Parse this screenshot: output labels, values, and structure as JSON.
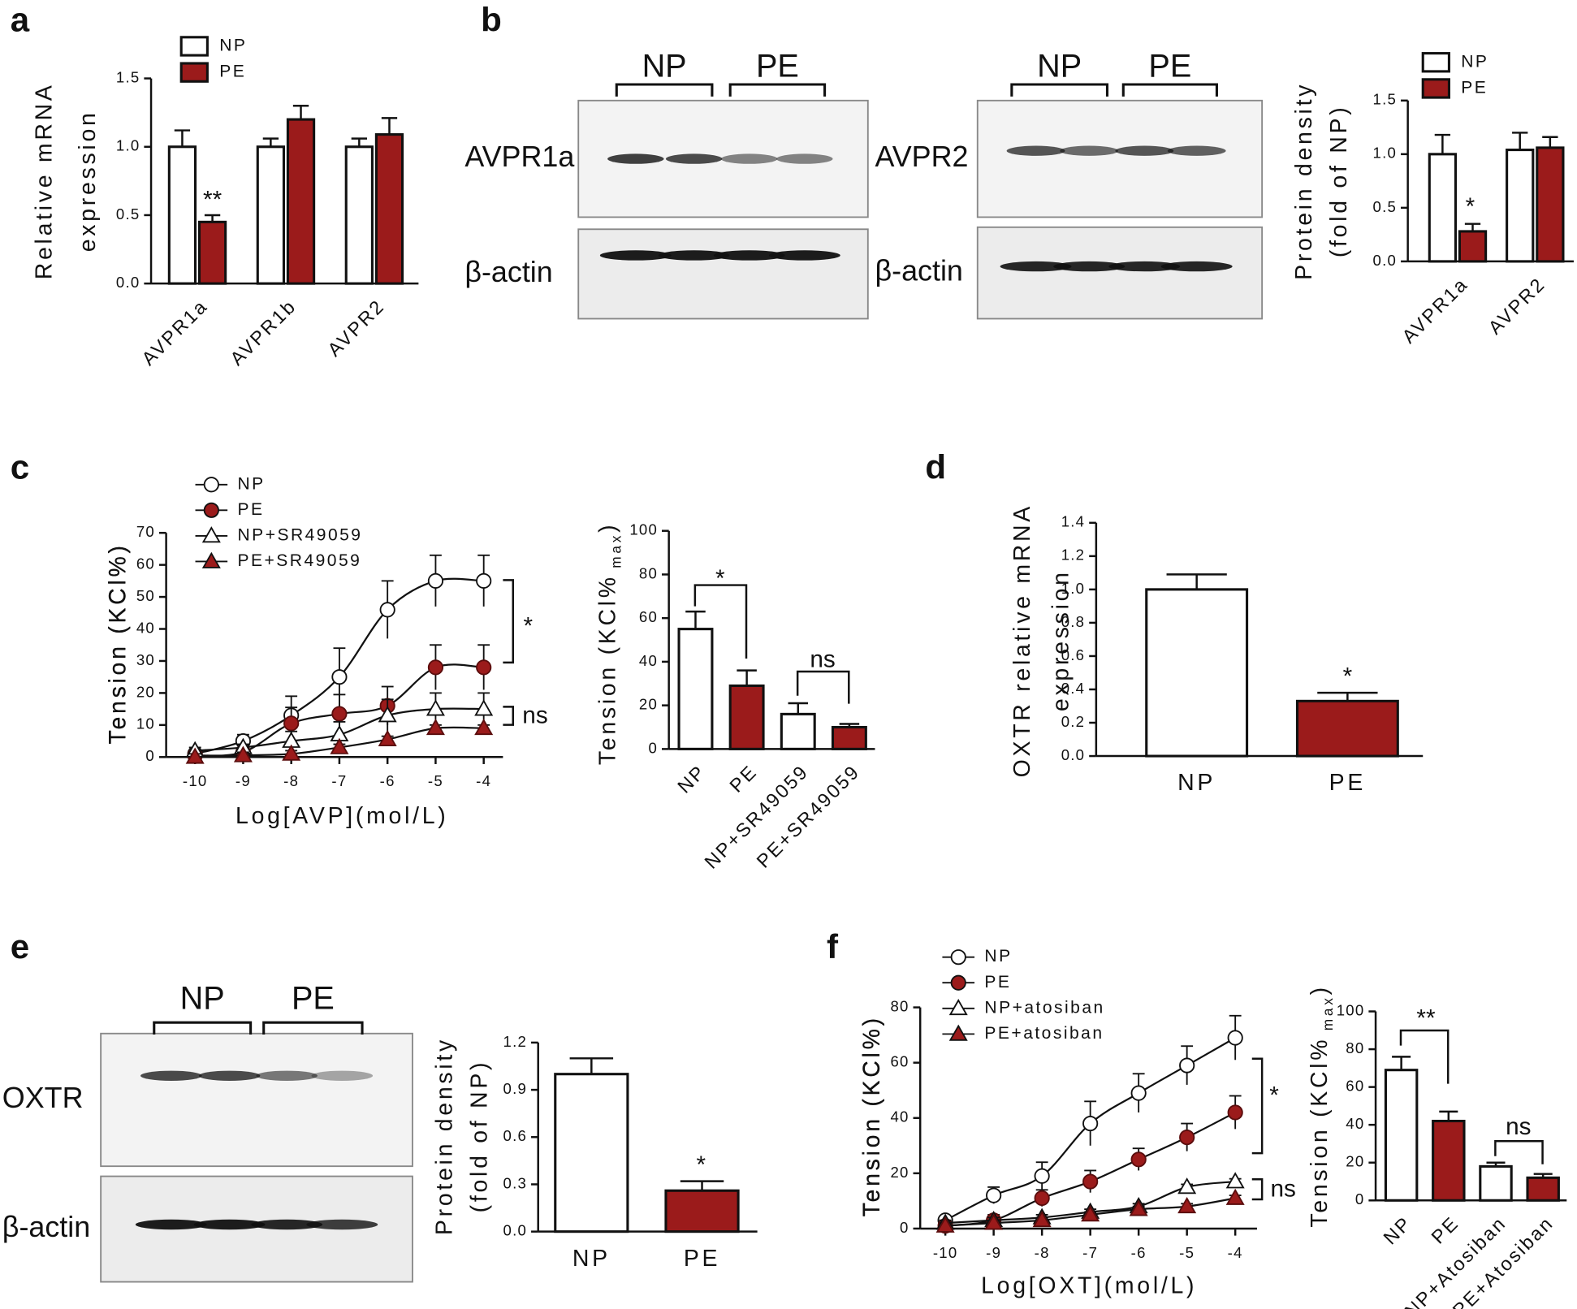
{
  "chart_data": [
    {
      "type": "bar",
      "panel": "a",
      "ylabel": [
        "Relative mRNA",
        "expression"
      ],
      "categories": [
        "AVPR1a",
        "AVPR1b",
        "AVPR2"
      ],
      "series": [
        {
          "name": "NP",
          "color": "#ffffff",
          "values": [
            1.0,
            1.0,
            1.0
          ],
          "errors": [
            0.12,
            0.06,
            0.06
          ]
        },
        {
          "name": "PE",
          "color": "#9b1b1b",
          "values": [
            0.45,
            1.2,
            1.09
          ],
          "errors": [
            0.05,
            0.1,
            0.12
          ]
        }
      ],
      "ylim": [
        0,
        1.5
      ],
      "yticks": [
        {
          "value": 0,
          "label": "0.0"
        },
        0.5,
        {
          "value": 1,
          "label": "1.0"
        },
        1.5
      ],
      "annotations": [
        "**"
      ]
    },
    {
      "type": "blot",
      "panel": "b",
      "groups": [
        "NP",
        "PE"
      ],
      "rows": [
        "AVPR1a",
        "β-actin"
      ]
    },
    {
      "type": "blot",
      "groups": [
        "NP",
        "PE"
      ],
      "rows": [
        "AVPR2",
        "β-actin"
      ]
    },
    {
      "type": "bar",
      "ylabel": [
        "Protein density",
        "(fold of NP)"
      ],
      "categories": [
        "AVPR1a",
        "AVPR2"
      ],
      "series": [
        {
          "name": "NP",
          "color": "#ffffff",
          "values": [
            1.0,
            1.04
          ],
          "errors": [
            0.18,
            0.16
          ]
        },
        {
          "name": "PE",
          "color": "#9b1b1b",
          "values": [
            0.28,
            1.06
          ],
          "errors": [
            0.07,
            0.1
          ]
        }
      ],
      "ylim": [
        0,
        1.5
      ],
      "yticks": [
        {
          "value": 0,
          "label": "0.0"
        },
        0.5,
        {
          "value": 1,
          "label": "1.0"
        },
        1.5
      ],
      "annotations": [
        "*"
      ]
    },
    {
      "type": "line",
      "panel": "c",
      "xlabel": "Log[AVP](mol/L)",
      "ylabel": "Tension (KCl%)",
      "x": [
        -10,
        -9,
        -8,
        -7,
        -6,
        -5,
        -4
      ],
      "series": [
        {
          "name": "NP",
          "marker": "circle",
          "color": "#ffffff",
          "values": [
            1,
            5,
            13,
            25,
            46,
            55,
            55
          ],
          "errors": [
            1,
            2,
            6,
            9,
            9,
            8,
            8
          ]
        },
        {
          "name": "PE",
          "marker": "circle",
          "color": "#9b1b1b",
          "values": [
            0.5,
            1.5,
            10.5,
            13.5,
            16,
            28,
            28
          ],
          "errors": [
            1,
            2,
            5,
            6,
            6,
            7,
            7
          ]
        },
        {
          "name": "NP+SR49059",
          "marker": "triangle",
          "color": "#ffffff",
          "values": [
            2,
            3,
            5,
            7,
            13,
            15,
            15
          ],
          "errors": [
            1,
            1,
            3,
            4,
            5,
            5,
            5
          ]
        },
        {
          "name": "PE+SR49059",
          "marker": "triangle",
          "color": "#9b1b1b",
          "values": [
            0,
            0.5,
            1,
            3,
            5.5,
            9,
            9
          ],
          "errors": [
            1,
            1,
            1,
            1,
            1,
            1,
            1
          ]
        }
      ],
      "xlim": [
        -10.6,
        -3.6
      ],
      "xticks": [
        -10,
        -9,
        -8,
        -7,
        -6,
        -5,
        -4
      ],
      "ylim": [
        0,
        70
      ],
      "yticks": [
        0,
        10,
        20,
        30,
        40,
        50,
        60,
        70
      ],
      "annotations": [
        "*",
        "ns"
      ]
    },
    {
      "type": "bar",
      "ylabel": "Tension (KCl%",
      "ylabel_sub": "max",
      "ylabel_end": ")",
      "categories": [
        "NP",
        "PE",
        "NP+SR49059",
        "PE+SR49059"
      ],
      "values": [
        55,
        29,
        16,
        10
      ],
      "errors": [
        8,
        7,
        5,
        1.5
      ],
      "colors": [
        "#ffffff",
        "#9b1b1b",
        "#ffffff",
        "#9b1b1b"
      ],
      "ylim": [
        0,
        100
      ],
      "yticks": [
        0,
        20,
        40,
        60,
        80,
        100
      ],
      "annotations": [
        "*",
        "ns"
      ]
    },
    {
      "type": "bar",
      "panel": "d",
      "ylabel": [
        "OXTR relative mRNA",
        "expression"
      ],
      "categories": [
        "NP",
        "PE"
      ],
      "values": [
        1.0,
        0.33
      ],
      "errors": [
        0.09,
        0.05
      ],
      "colors": [
        "#ffffff",
        "#9b1b1b"
      ],
      "ylim": [
        0,
        1.4
      ],
      "yticks": [
        {
          "value": 0,
          "label": "0.0"
        },
        0.2,
        0.4,
        0.6,
        0.8,
        {
          "value": 1,
          "label": "1.0"
        },
        1.2,
        1.4
      ],
      "annotations": [
        "*"
      ]
    },
    {
      "type": "blot",
      "panel": "e",
      "groups": [
        "NP",
        "PE"
      ],
      "rows": [
        "OXTR",
        "β-actin"
      ]
    },
    {
      "type": "bar",
      "ylabel": [
        "Protein density",
        "(fold of NP)"
      ],
      "categories": [
        "NP",
        "PE"
      ],
      "values": [
        1.0,
        0.26
      ],
      "errors": [
        0.1,
        0.06
      ],
      "colors": [
        "#ffffff",
        "#9b1b1b"
      ],
      "ylim": [
        0,
        1.2
      ],
      "yticks": [
        {
          "value": 0,
          "label": "0.0"
        },
        0.3,
        0.6,
        0.9,
        1.2
      ],
      "annotations": [
        "*"
      ]
    },
    {
      "type": "line",
      "panel": "f",
      "xlabel": "Log[OXT](mol/L)",
      "ylabel": "Tension (KCl%)",
      "x": [
        -10,
        -9,
        -8,
        -7,
        -6,
        -5,
        -4
      ],
      "series": [
        {
          "name": "NP",
          "marker": "circle",
          "color": "#ffffff",
          "values": [
            3,
            12,
            19,
            38,
            49,
            59,
            69
          ],
          "errors": [
            1,
            3,
            5,
            8,
            7,
            7,
            8
          ]
        },
        {
          "name": "PE",
          "marker": "circle",
          "color": "#9b1b1b",
          "values": [
            1,
            3,
            11,
            17,
            25,
            33,
            42
          ],
          "errors": [
            1,
            2,
            3,
            4,
            4,
            5,
            6
          ]
        },
        {
          "name": "NP+atosiban",
          "marker": "triangle",
          "color": "#ffffff",
          "values": [
            2,
            3,
            4,
            6,
            8,
            15,
            17
          ],
          "errors": [
            1,
            1,
            1,
            1,
            1,
            1,
            1
          ]
        },
        {
          "name": "PE+atosiban",
          "marker": "triangle",
          "color": "#9b1b1b",
          "values": [
            1,
            2,
            3,
            5,
            7,
            8,
            11
          ],
          "errors": [
            1,
            1,
            1,
            1,
            1,
            1,
            1
          ]
        }
      ],
      "xlim": [
        -10.52,
        -3.55
      ],
      "xticks": [
        -10,
        -9,
        -8,
        -7,
        -6,
        -5,
        -4
      ],
      "ylim": [
        0,
        80
      ],
      "yticks": [
        0,
        20,
        40,
        60,
        80
      ],
      "annotations": [
        "*",
        "ns"
      ]
    },
    {
      "type": "bar",
      "ylabel": "Tension (KCl%",
      "ylabel_sub": "max",
      "ylabel_end": ")",
      "categories": [
        "NP",
        "PE",
        "NP+Atosiban",
        "PE+Atosiban"
      ],
      "values": [
        69,
        42,
        18,
        12
      ],
      "errors": [
        7,
        5,
        2,
        2
      ],
      "colors": [
        "#ffffff",
        "#9b1b1b",
        "#ffffff",
        "#9b1b1b"
      ],
      "ylim": [
        0,
        100
      ],
      "yticks": [
        0,
        20,
        40,
        60,
        80,
        100
      ],
      "annotations": [
        "**",
        "ns"
      ]
    }
  ]
}
